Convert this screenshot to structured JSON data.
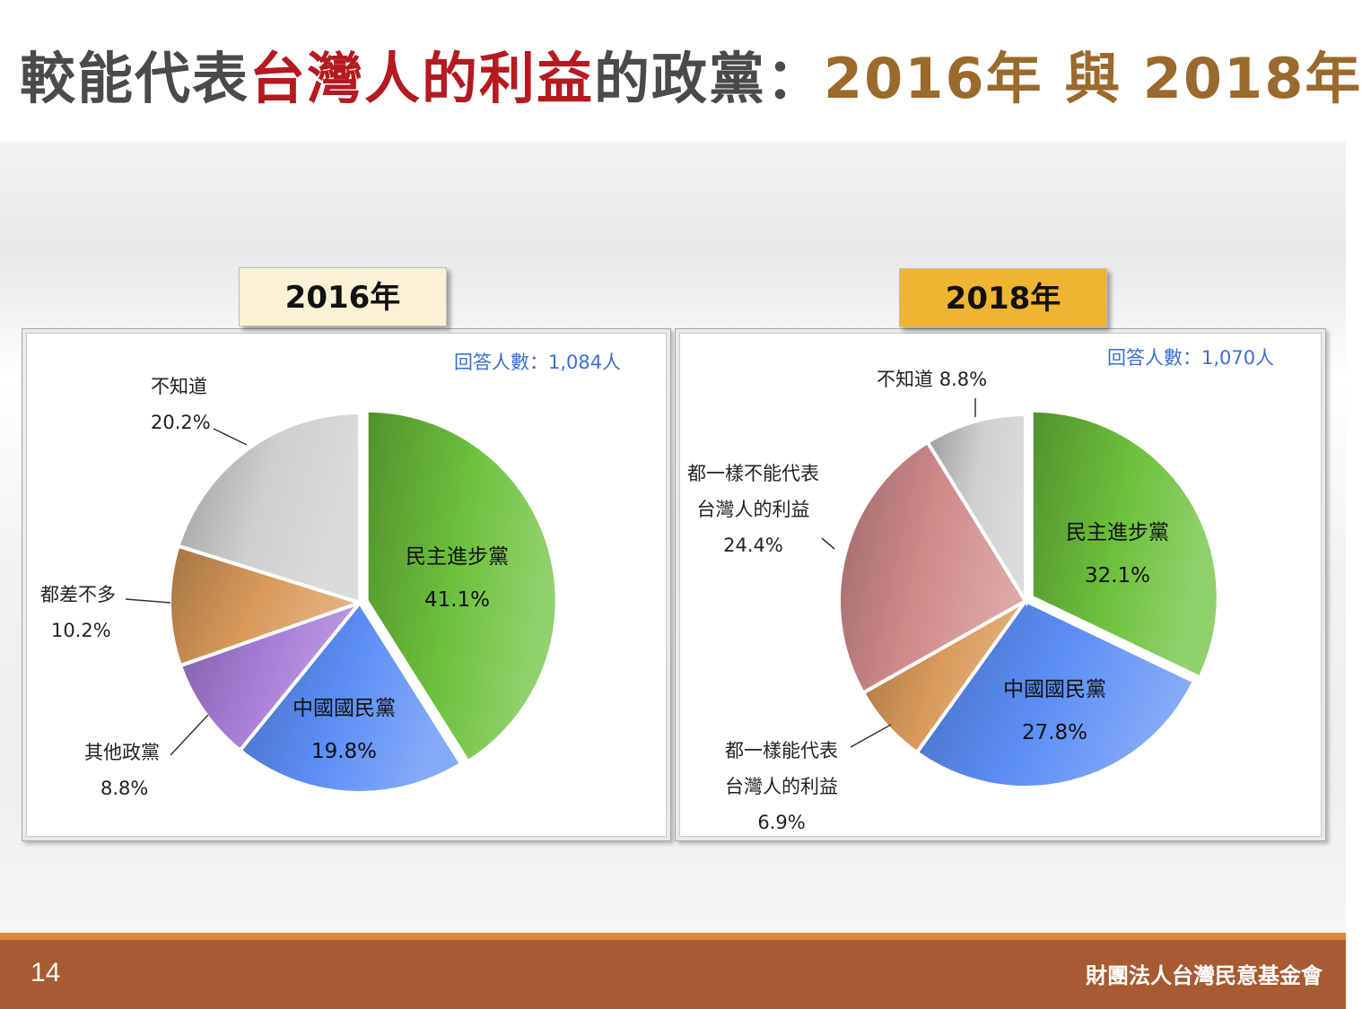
{
  "title": {
    "part1": "較能代表",
    "part2": "台灣人的利益",
    "part3": "的政黨：",
    "part4": "2016年 與 2018年"
  },
  "footer": {
    "page_number": "14",
    "organization": "財團法人台灣民意基金會"
  },
  "colors": {
    "dpp": "#6cc13c",
    "kmt": "#5b8ef5",
    "other": "#a87ed8",
    "no_difference": "#d99a5a",
    "dont_know": "#cfcfcf",
    "none_represent": "#d08a8a",
    "all_represent": "#d99a5a",
    "title_red": "#b41a1f",
    "title_brown": "#9a6a2c",
    "respondents_blue": "#3b6fd1"
  },
  "chart_data": [
    {
      "type": "pie",
      "tab_label": "2016年",
      "respondents": "回答人數：1,084人",
      "slices": [
        {
          "label": "民主進步黨",
          "value": 41.1,
          "value_label": "41.1%",
          "color_key": "dpp"
        },
        {
          "label": "中國國民黨",
          "value": 19.8,
          "value_label": "19.8%",
          "color_key": "kmt"
        },
        {
          "label": "其他政黨",
          "value": 8.8,
          "value_label": "8.8%",
          "color_key": "other"
        },
        {
          "label": "都差不多",
          "value": 10.2,
          "value_label": "10.2%",
          "color_key": "no_difference"
        },
        {
          "label": "不知道",
          "value": 20.2,
          "value_label": "20.2%",
          "color_key": "dont_know"
        }
      ]
    },
    {
      "type": "pie",
      "tab_label": "2018年",
      "respondents": "回答人數：1,070人",
      "slices": [
        {
          "label": "民主進步黨",
          "value": 32.1,
          "value_label": "32.1%",
          "color_key": "dpp"
        },
        {
          "label": "中國國民黨",
          "value": 27.8,
          "value_label": "27.8%",
          "color_key": "kmt"
        },
        {
          "label": "都一樣能代表台灣人的利益",
          "label_line1": "都一樣能代表",
          "label_line2": "台灣人的利益",
          "value": 6.9,
          "value_label": "6.9%",
          "color_key": "all_represent"
        },
        {
          "label": "都一樣不能代表台灣人的利益",
          "label_line1": "都一樣不能代表",
          "label_line2": "台灣人的利益",
          "value": 24.4,
          "value_label": "24.4%",
          "color_key": "none_represent"
        },
        {
          "label": "不知道",
          "value": 8.8,
          "value_label": "8.8%",
          "color_key": "dont_know"
        }
      ]
    }
  ]
}
